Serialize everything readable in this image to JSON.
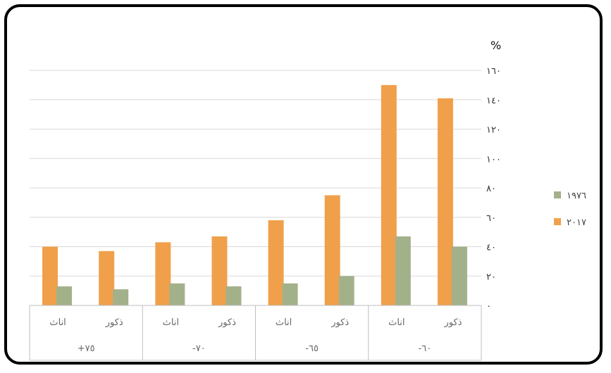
{
  "chart_data": {
    "type": "bar",
    "title": "",
    "ylabel": "%",
    "xlabel": "",
    "ylim": [
      0,
      160
    ],
    "y_ticks": [
      0,
      20,
      40,
      60,
      80,
      100,
      120,
      140,
      160
    ],
    "y_tick_labels": [
      "٠",
      "٢٠",
      "٤٠",
      "٦٠",
      "٨٠",
      "١٠٠",
      "١٢٠",
      "١٤٠",
      "١٦٠"
    ],
    "grid": true,
    "legend_position": "right",
    "groups": [
      {
        "label": "+٧٥",
        "categories": [
          "اناث",
          "ذكور"
        ]
      },
      {
        "label": "-٧٠",
        "categories": [
          "اناث",
          "ذكور"
        ]
      },
      {
        "label": "-٦٥",
        "categories": [
          "اناث",
          "ذكور"
        ]
      },
      {
        "label": "-٦٠",
        "categories": [
          "اناث",
          "ذكور"
        ]
      }
    ],
    "categories": [
      "+٧٥ اناث",
      "+٧٥ ذكور",
      "-٧٠ اناث",
      "-٧٠ ذكور",
      "-٦٥ اناث",
      "-٦٥ ذكور",
      "-٦٠ اناث",
      "-٦٠ ذكور"
    ],
    "series": [
      {
        "name": "٢٠١٧",
        "color": "#F0A04B",
        "values": [
          40,
          37,
          43,
          47,
          58,
          75,
          150,
          141
        ]
      },
      {
        "name": "١٩٧٦",
        "color": "#A3B18A",
        "values": [
          13,
          11,
          15,
          13,
          15,
          20,
          47,
          40
        ]
      }
    ],
    "legend": [
      {
        "name": "١٩٧٦",
        "color": "#A3B18A"
      },
      {
        "name": "٢٠١٧",
        "color": "#F0A04B"
      }
    ]
  }
}
